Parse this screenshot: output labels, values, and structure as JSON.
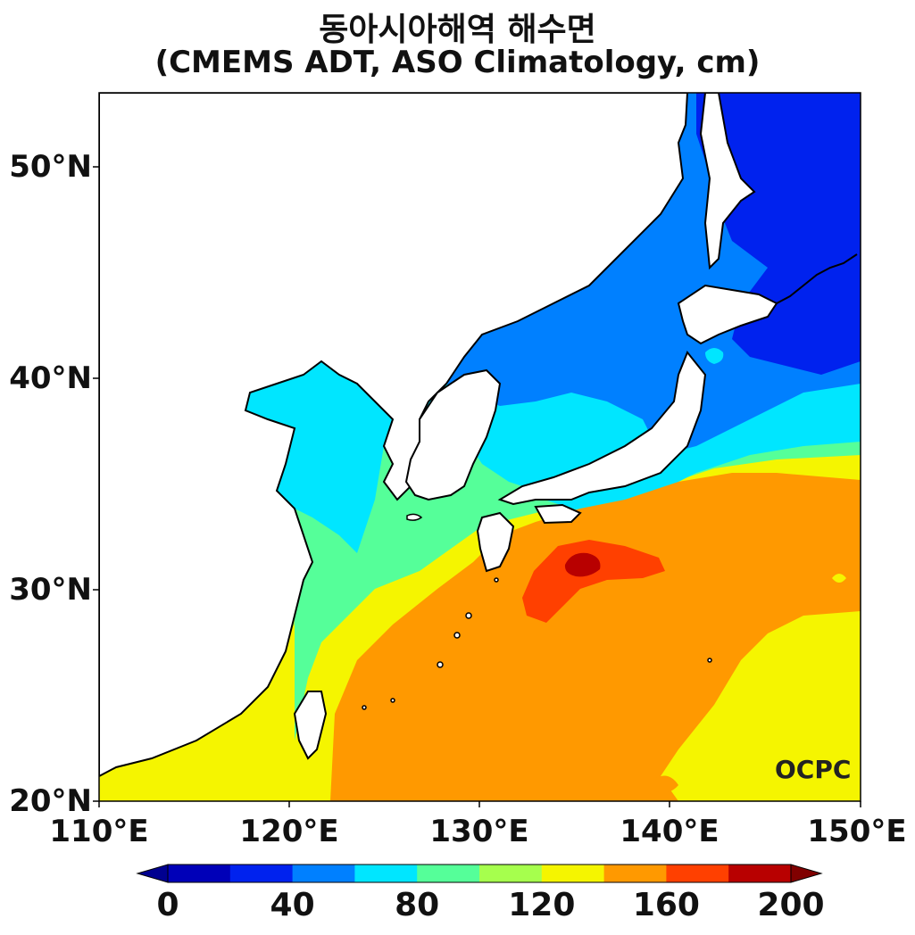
{
  "title_line1": "동아시아해역 해수면",
  "title_line2": "(CMEMS ADT, ASO Climatology, cm)",
  "logo_text": "OCPC",
  "map": {
    "lon_range": [
      110,
      150
    ],
    "lat_range": [
      20,
      53.5
    ],
    "lon_ticks": [
      "110°E",
      "120°E",
      "130°E",
      "140°E",
      "150°E"
    ],
    "lat_ticks": [
      "20°N",
      "30°N",
      "40°N",
      "50°N"
    ]
  },
  "colorbar": {
    "levels": [
      0,
      20,
      40,
      60,
      80,
      100,
      120,
      140,
      160,
      180,
      200
    ],
    "colors": [
      "#0000b8",
      "#0022ee",
      "#0080ff",
      "#00e6ff",
      "#55ff99",
      "#a6ff4d",
      "#f5f500",
      "#ff9900",
      "#ff4000",
      "#b80000"
    ],
    "under_color": "#000090",
    "over_color": "#800000",
    "tick_labels": [
      "0",
      "40",
      "80",
      "120",
      "160",
      "200"
    ]
  }
}
